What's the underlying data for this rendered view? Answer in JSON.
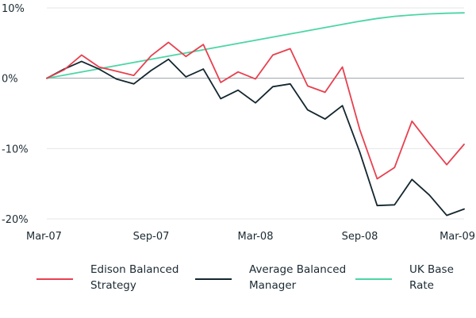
{
  "chart_data": {
    "type": "line",
    "x_ticks": [
      "Mar-07",
      "Sep-07",
      "Mar-08",
      "Sep-08",
      "Mar-09"
    ],
    "y_ticks": [
      "10%",
      "0%",
      "-10%",
      "-20%"
    ],
    "ylim": [
      -20,
      10
    ],
    "x_count": 25,
    "grid": "horizontal",
    "legend_position": "bottom",
    "series": [
      {
        "name": "Edison Balanced Strategy",
        "color": "#e8404f",
        "values": [
          0,
          1.2,
          3.3,
          1.6,
          1.0,
          0.4,
          3.2,
          5.1,
          3.1,
          4.8,
          -0.6,
          0.9,
          -0.1,
          3.3,
          4.2,
          -1.1,
          -2.0,
          1.6,
          -7.3,
          -14.3,
          -12.7,
          -6.1,
          -9.3,
          -12.3,
          -9.4
        ]
      },
      {
        "name": "Average Balanced Manager",
        "color": "#13262f",
        "values": [
          0,
          1.3,
          2.4,
          1.3,
          -0.1,
          -0.8,
          1.1,
          2.7,
          0.2,
          1.3,
          -2.9,
          -1.7,
          -3.5,
          -1.2,
          -0.8,
          -4.5,
          -5.8,
          -3.9,
          -10.5,
          -18.1,
          -18.0,
          -14.4,
          -16.6,
          -19.5,
          -18.6
        ]
      },
      {
        "name": "UK Base Rate",
        "color": "#4cd6a4",
        "values": [
          0,
          0.45,
          0.9,
          1.35,
          1.8,
          2.25,
          2.7,
          3.15,
          3.6,
          4.05,
          4.5,
          4.95,
          5.4,
          5.85,
          6.3,
          6.75,
          7.2,
          7.65,
          8.1,
          8.5,
          8.8,
          9.0,
          9.15,
          9.25,
          9.3
        ]
      }
    ]
  },
  "legend": [
    {
      "line1": "Edison Balanced",
      "line2": "Strategy",
      "color": "#e8404f"
    },
    {
      "line1": "Average Balanced",
      "line2": "Manager",
      "color": "#13262f"
    },
    {
      "line1": "UK Base",
      "line2": "Rate",
      "color": "#4cd6a4"
    }
  ]
}
